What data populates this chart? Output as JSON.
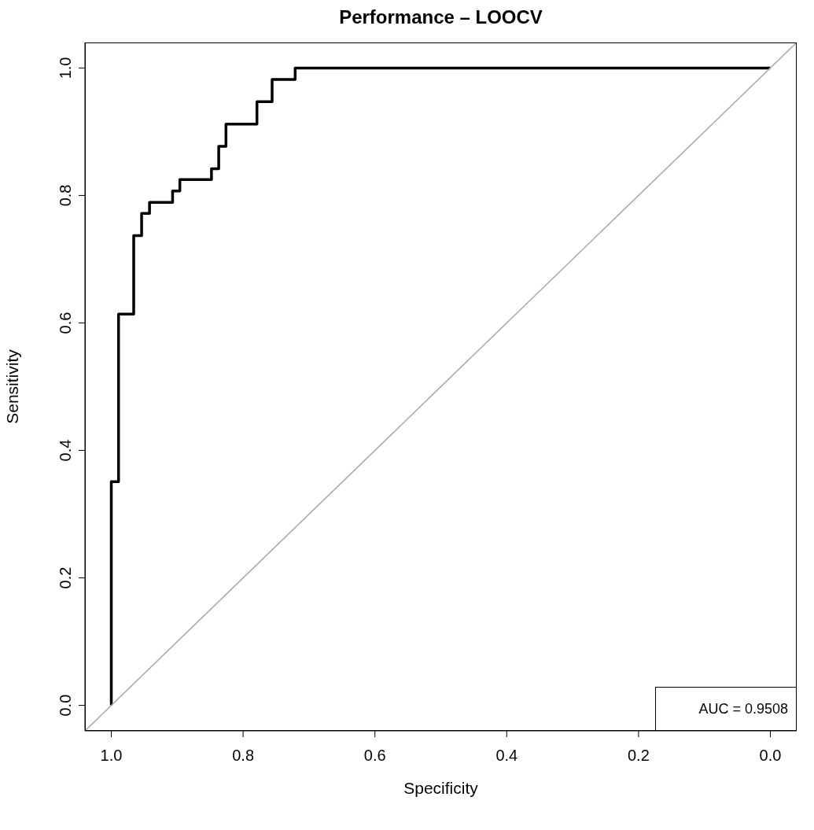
{
  "chart_data": {
    "type": "line",
    "title": "Performance – LOOCV",
    "xlabel": "Specificity",
    "ylabel": "Sensitivity",
    "xlim": [
      1.04,
      -0.04
    ],
    "ylim": [
      -0.04,
      1.04
    ],
    "xticks": [
      {
        "value": 1,
        "label": "1.0"
      },
      0.8,
      0.6,
      0.4,
      0.2,
      {
        "value": 0,
        "label": "0.0"
      }
    ],
    "yticks": [
      {
        "value": 0,
        "label": "0.0"
      },
      0.2,
      0.4,
      0.6,
      0.8,
      {
        "value": 1,
        "label": "1.0"
      }
    ],
    "marker": "none",
    "line_style": "solid",
    "annotations": [
      "AUC = 0.9508"
    ],
    "series": [
      {
        "color": "#000000",
        "x": [
          1,
          1,
          0.989,
          0.989,
          0.966,
          0.966,
          0.954,
          0.954,
          0.942,
          0.942,
          0.907,
          0.907,
          0.896,
          0.896,
          0.848,
          0.848,
          0.837,
          0.837,
          0.826,
          0.826,
          0.779,
          0.779,
          0.756,
          0.756,
          0.721,
          0.721,
          0
        ],
        "values": [
          0,
          0.351,
          0.351,
          0.614,
          0.614,
          0.737,
          0.737,
          0.772,
          0.772,
          0.789,
          0.789,
          0.807,
          0.807,
          0.825,
          0.825,
          0.842,
          0.842,
          0.877,
          0.877,
          0.912,
          0.912,
          0.947,
          0.947,
          0.982,
          0.982,
          1,
          1
        ]
      },
      {
        "color": "#aaaaaa",
        "x": [
          1.04,
          -0.04
        ],
        "values": [
          -0.04,
          1.04
        ]
      }
    ]
  }
}
